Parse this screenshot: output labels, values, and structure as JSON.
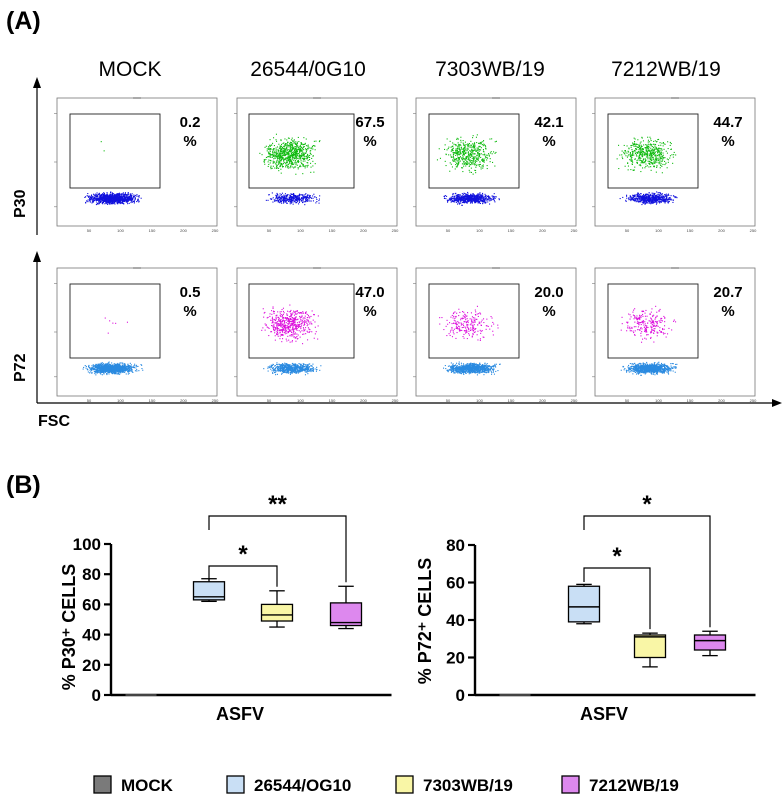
{
  "panel_a_label": "(A)",
  "panel_b_label": "(B)",
  "colors": {
    "p30_neg": "#1111dd",
    "p30_pos": "#11bb11",
    "p72_neg": "#2a8ae0",
    "p72_pos": "#dd11dd",
    "mock": "#7a7a7a",
    "iso1": "#c9dff5",
    "iso2": "#f9f6a6",
    "iso3": "#dd88ee"
  },
  "chart_data": [
    {
      "type": "scatter",
      "subtype": "flow_cytometry_dot_plots",
      "columns": [
        "MOCK",
        "26544/0G10",
        "7303WB/19",
        "7212WB/19"
      ],
      "rows": [
        "P30",
        "P72"
      ],
      "xlabel": "FSC",
      "x_ticks": [
        "50",
        "100",
        "150",
        "200",
        "250"
      ],
      "gate_percent": {
        "P30": [
          {
            "value": "0.2",
            "unit": "%"
          },
          {
            "value": "67.5",
            "unit": "%"
          },
          {
            "value": "42.1",
            "unit": "%"
          },
          {
            "value": "44.7",
            "unit": "%"
          }
        ],
        "P72": [
          {
            "value": "0.5",
            "unit": "%"
          },
          {
            "value": "47.0",
            "unit": "%"
          },
          {
            "value": "20.0",
            "unit": "%"
          },
          {
            "value": "20.7",
            "unit": "%"
          }
        ]
      },
      "positive_fraction": {
        "P30": [
          0.002,
          0.675,
          0.421,
          0.447
        ],
        "P72": [
          0.005,
          0.47,
          0.2,
          0.207
        ]
      }
    },
    {
      "type": "box",
      "ylabel": "% P30⁺ CELLS",
      "xlabel": "ASFV",
      "ylim": [
        0,
        100
      ],
      "yticks": [
        0,
        20,
        40,
        60,
        80,
        100
      ],
      "boxes": [
        {
          "group": "MOCK",
          "min": 0,
          "q1": 0,
          "median": 0,
          "q3": 0,
          "max": 0
        },
        {
          "group": "26544/OG10",
          "min": 62,
          "q1": 63,
          "median": 65,
          "q3": 75,
          "max": 77
        },
        {
          "group": "7303WB/19",
          "min": 45,
          "q1": 49,
          "median": 53,
          "q3": 60,
          "max": 69
        },
        {
          "group": "7212WB/19",
          "min": 44,
          "q1": 46,
          "median": 48,
          "q3": 61,
          "max": 72
        }
      ],
      "significance": [
        {
          "from": 1,
          "to": 2,
          "label": "*"
        },
        {
          "from": 1,
          "to": 3,
          "label": "**"
        }
      ]
    },
    {
      "type": "box",
      "ylabel": "% P72⁺ CELLS",
      "xlabel": "ASFV",
      "ylim": [
        0,
        80
      ],
      "yticks": [
        0,
        20,
        40,
        60,
        80
      ],
      "boxes": [
        {
          "group": "MOCK",
          "min": 0,
          "q1": 0,
          "median": 0,
          "q3": 0,
          "max": 0
        },
        {
          "group": "26544/OG10",
          "min": 38,
          "q1": 39,
          "median": 47,
          "q3": 58,
          "max": 59
        },
        {
          "group": "7303WB/19",
          "min": 15,
          "q1": 20,
          "median": 31,
          "q3": 32,
          "max": 33
        },
        {
          "group": "7212WB/19",
          "min": 21,
          "q1": 24,
          "median": 29,
          "q3": 32,
          "max": 34
        }
      ],
      "significance": [
        {
          "from": 1,
          "to": 2,
          "label": "*"
        },
        {
          "from": 1,
          "to": 3,
          "label": "*"
        }
      ]
    }
  ],
  "legend": [
    {
      "label": "MOCK",
      "color": "#7a7a7a"
    },
    {
      "label": "26544/OG10",
      "color": "#c9dff5"
    },
    {
      "label": "7303WB/19",
      "color": "#f9f6a6"
    },
    {
      "label": "7212WB/19",
      "color": "#dd88ee"
    }
  ]
}
